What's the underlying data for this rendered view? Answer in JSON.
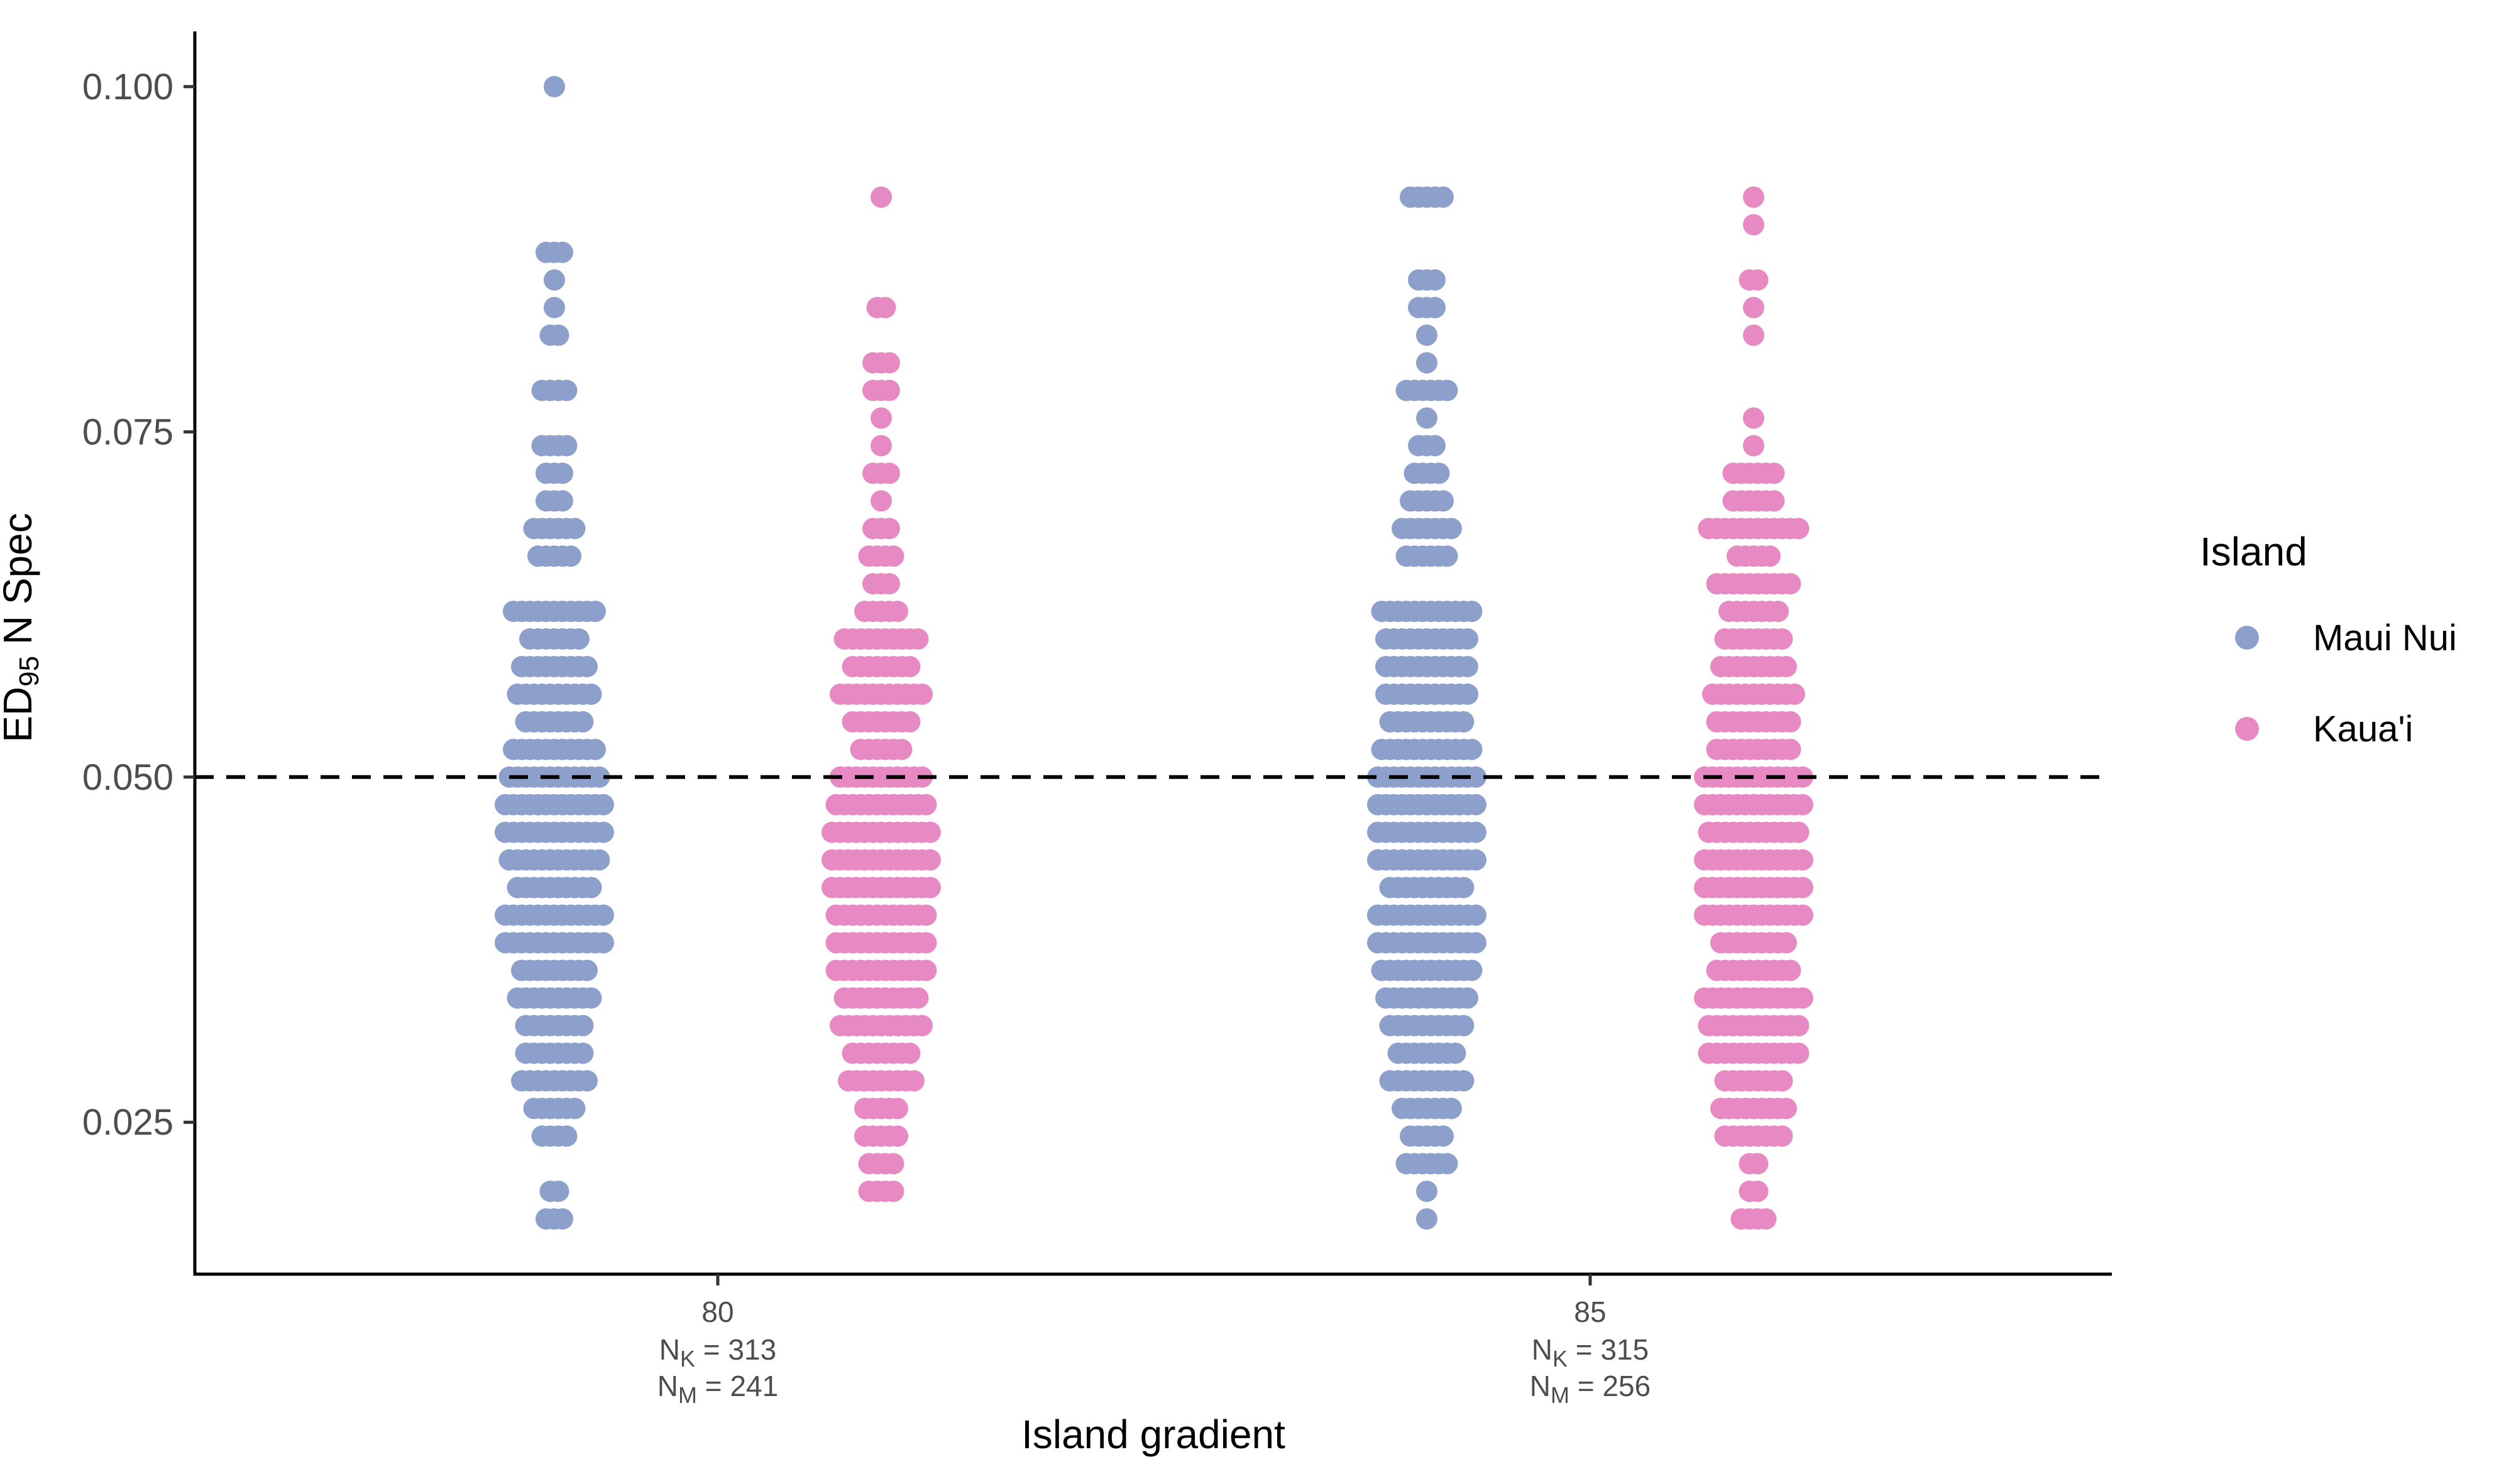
{
  "chart_data": {
    "type": "scatter",
    "xlabel": "Island gradient",
    "ylabel": {
      "main": "ED",
      "sub": "95",
      "rest": " N Spec"
    },
    "yticks": [
      "0.025",
      "0.050",
      "0.075",
      "0.100"
    ],
    "ylim": [
      0.014,
      0.104
    ],
    "reference_line": {
      "y": 0.05,
      "style": "dashed",
      "color": "#000000"
    },
    "grid": false,
    "legend": {
      "title": "Island",
      "placement": "right",
      "entries": [
        {
          "name": "Maui Nui",
          "color": "#8DA0CB"
        },
        {
          "name": "Kaua'i",
          "color": "#E78AC3"
        }
      ]
    },
    "categories": [
      {
        "label": "80",
        "counts": [
          {
            "main": "N",
            "sub": "K",
            "rest": " = 313"
          },
          {
            "main": "N",
            "sub": "M",
            "rest": " = 241"
          }
        ]
      },
      {
        "label": "85",
        "counts": [
          {
            "main": "N",
            "sub": "K",
            "rest": " = 315"
          },
          {
            "main": "N",
            "sub": "M",
            "rest": " = 256"
          }
        ]
      }
    ],
    "series": [
      {
        "name": "Maui Nui",
        "color": "#8DA0CB",
        "groups": [
          {
            "category": "80",
            "rows": [
              [
                0.1,
                1
              ],
              [
                0.088,
                3
              ],
              [
                0.086,
                1
              ],
              [
                0.084,
                1
              ],
              [
                0.082,
                2
              ],
              [
                0.078,
                4
              ],
              [
                0.074,
                4
              ],
              [
                0.072,
                3
              ],
              [
                0.07,
                3
              ],
              [
                0.068,
                6
              ],
              [
                0.066,
                5
              ],
              [
                0.062,
                11
              ],
              [
                0.06,
                7
              ],
              [
                0.058,
                9
              ],
              [
                0.056,
                10
              ],
              [
                0.054,
                8
              ],
              [
                0.052,
                11
              ],
              [
                0.05,
                12
              ],
              [
                0.048,
                13
              ],
              [
                0.046,
                13
              ],
              [
                0.044,
                12
              ],
              [
                0.042,
                10
              ],
              [
                0.04,
                13
              ],
              [
                0.038,
                13
              ],
              [
                0.036,
                9
              ],
              [
                0.034,
                10
              ],
              [
                0.032,
                8
              ],
              [
                0.03,
                8
              ],
              [
                0.028,
                9
              ],
              [
                0.026,
                6
              ],
              [
                0.024,
                4
              ],
              [
                0.02,
                2
              ],
              [
                0.018,
                3
              ]
            ]
          },
          {
            "category": "85",
            "rows": [
              [
                0.092,
                5
              ],
              [
                0.086,
                3
              ],
              [
                0.084,
                3
              ],
              [
                0.082,
                1
              ],
              [
                0.08,
                1
              ],
              [
                0.078,
                6
              ],
              [
                0.076,
                1
              ],
              [
                0.074,
                3
              ],
              [
                0.072,
                4
              ],
              [
                0.07,
                5
              ],
              [
                0.068,
                7
              ],
              [
                0.066,
                6
              ],
              [
                0.062,
                12
              ],
              [
                0.06,
                11
              ],
              [
                0.058,
                11
              ],
              [
                0.056,
                11
              ],
              [
                0.054,
                10
              ],
              [
                0.052,
                12
              ],
              [
                0.05,
                13
              ],
              [
                0.048,
                13
              ],
              [
                0.046,
                13
              ],
              [
                0.044,
                13
              ],
              [
                0.042,
                10
              ],
              [
                0.04,
                13
              ],
              [
                0.038,
                13
              ],
              [
                0.036,
                12
              ],
              [
                0.034,
                11
              ],
              [
                0.032,
                10
              ],
              [
                0.03,
                8
              ],
              [
                0.028,
                10
              ],
              [
                0.026,
                7
              ],
              [
                0.024,
                5
              ],
              [
                0.022,
                6
              ],
              [
                0.02,
                1
              ],
              [
                0.018,
                1
              ]
            ]
          }
        ]
      },
      {
        "name": "Kaua'i",
        "color": "#E78AC3",
        "groups": [
          {
            "category": "80",
            "rows": [
              [
                0.092,
                1
              ],
              [
                0.084,
                2
              ],
              [
                0.08,
                3
              ],
              [
                0.078,
                3
              ],
              [
                0.076,
                1
              ],
              [
                0.074,
                1
              ],
              [
                0.072,
                3
              ],
              [
                0.07,
                1
              ],
              [
                0.068,
                3
              ],
              [
                0.066,
                4
              ],
              [
                0.064,
                3
              ],
              [
                0.062,
                5
              ],
              [
                0.06,
                10
              ],
              [
                0.058,
                8
              ],
              [
                0.056,
                11
              ],
              [
                0.054,
                8
              ],
              [
                0.052,
                6
              ],
              [
                0.05,
                11
              ],
              [
                0.048,
                12
              ],
              [
                0.046,
                13
              ],
              [
                0.044,
                13
              ],
              [
                0.042,
                13
              ],
              [
                0.04,
                12
              ],
              [
                0.038,
                12
              ],
              [
                0.036,
                12
              ],
              [
                0.034,
                10
              ],
              [
                0.032,
                11
              ],
              [
                0.03,
                8
              ],
              [
                0.028,
                9
              ],
              [
                0.026,
                5
              ],
              [
                0.024,
                5
              ],
              [
                0.022,
                4
              ],
              [
                0.02,
                4
              ]
            ]
          },
          {
            "category": "85",
            "rows": [
              [
                0.092,
                1
              ],
              [
                0.09,
                1
              ],
              [
                0.086,
                2
              ],
              [
                0.084,
                1
              ],
              [
                0.082,
                1
              ],
              [
                0.076,
                1
              ],
              [
                0.074,
                1
              ],
              [
                0.072,
                6
              ],
              [
                0.07,
                6
              ],
              [
                0.068,
                12
              ],
              [
                0.066,
                5
              ],
              [
                0.064,
                10
              ],
              [
                0.062,
                7
              ],
              [
                0.06,
                8
              ],
              [
                0.058,
                9
              ],
              [
                0.056,
                11
              ],
              [
                0.054,
                10
              ],
              [
                0.052,
                10
              ],
              [
                0.05,
                13
              ],
              [
                0.048,
                13
              ],
              [
                0.046,
                12
              ],
              [
                0.044,
                13
              ],
              [
                0.042,
                13
              ],
              [
                0.04,
                13
              ],
              [
                0.038,
                9
              ],
              [
                0.036,
                10
              ],
              [
                0.034,
                13
              ],
              [
                0.032,
                12
              ],
              [
                0.03,
                12
              ],
              [
                0.028,
                8
              ],
              [
                0.026,
                9
              ],
              [
                0.024,
                8
              ],
              [
                0.022,
                2
              ],
              [
                0.02,
                2
              ],
              [
                0.018,
                4
              ]
            ]
          }
        ]
      }
    ]
  }
}
